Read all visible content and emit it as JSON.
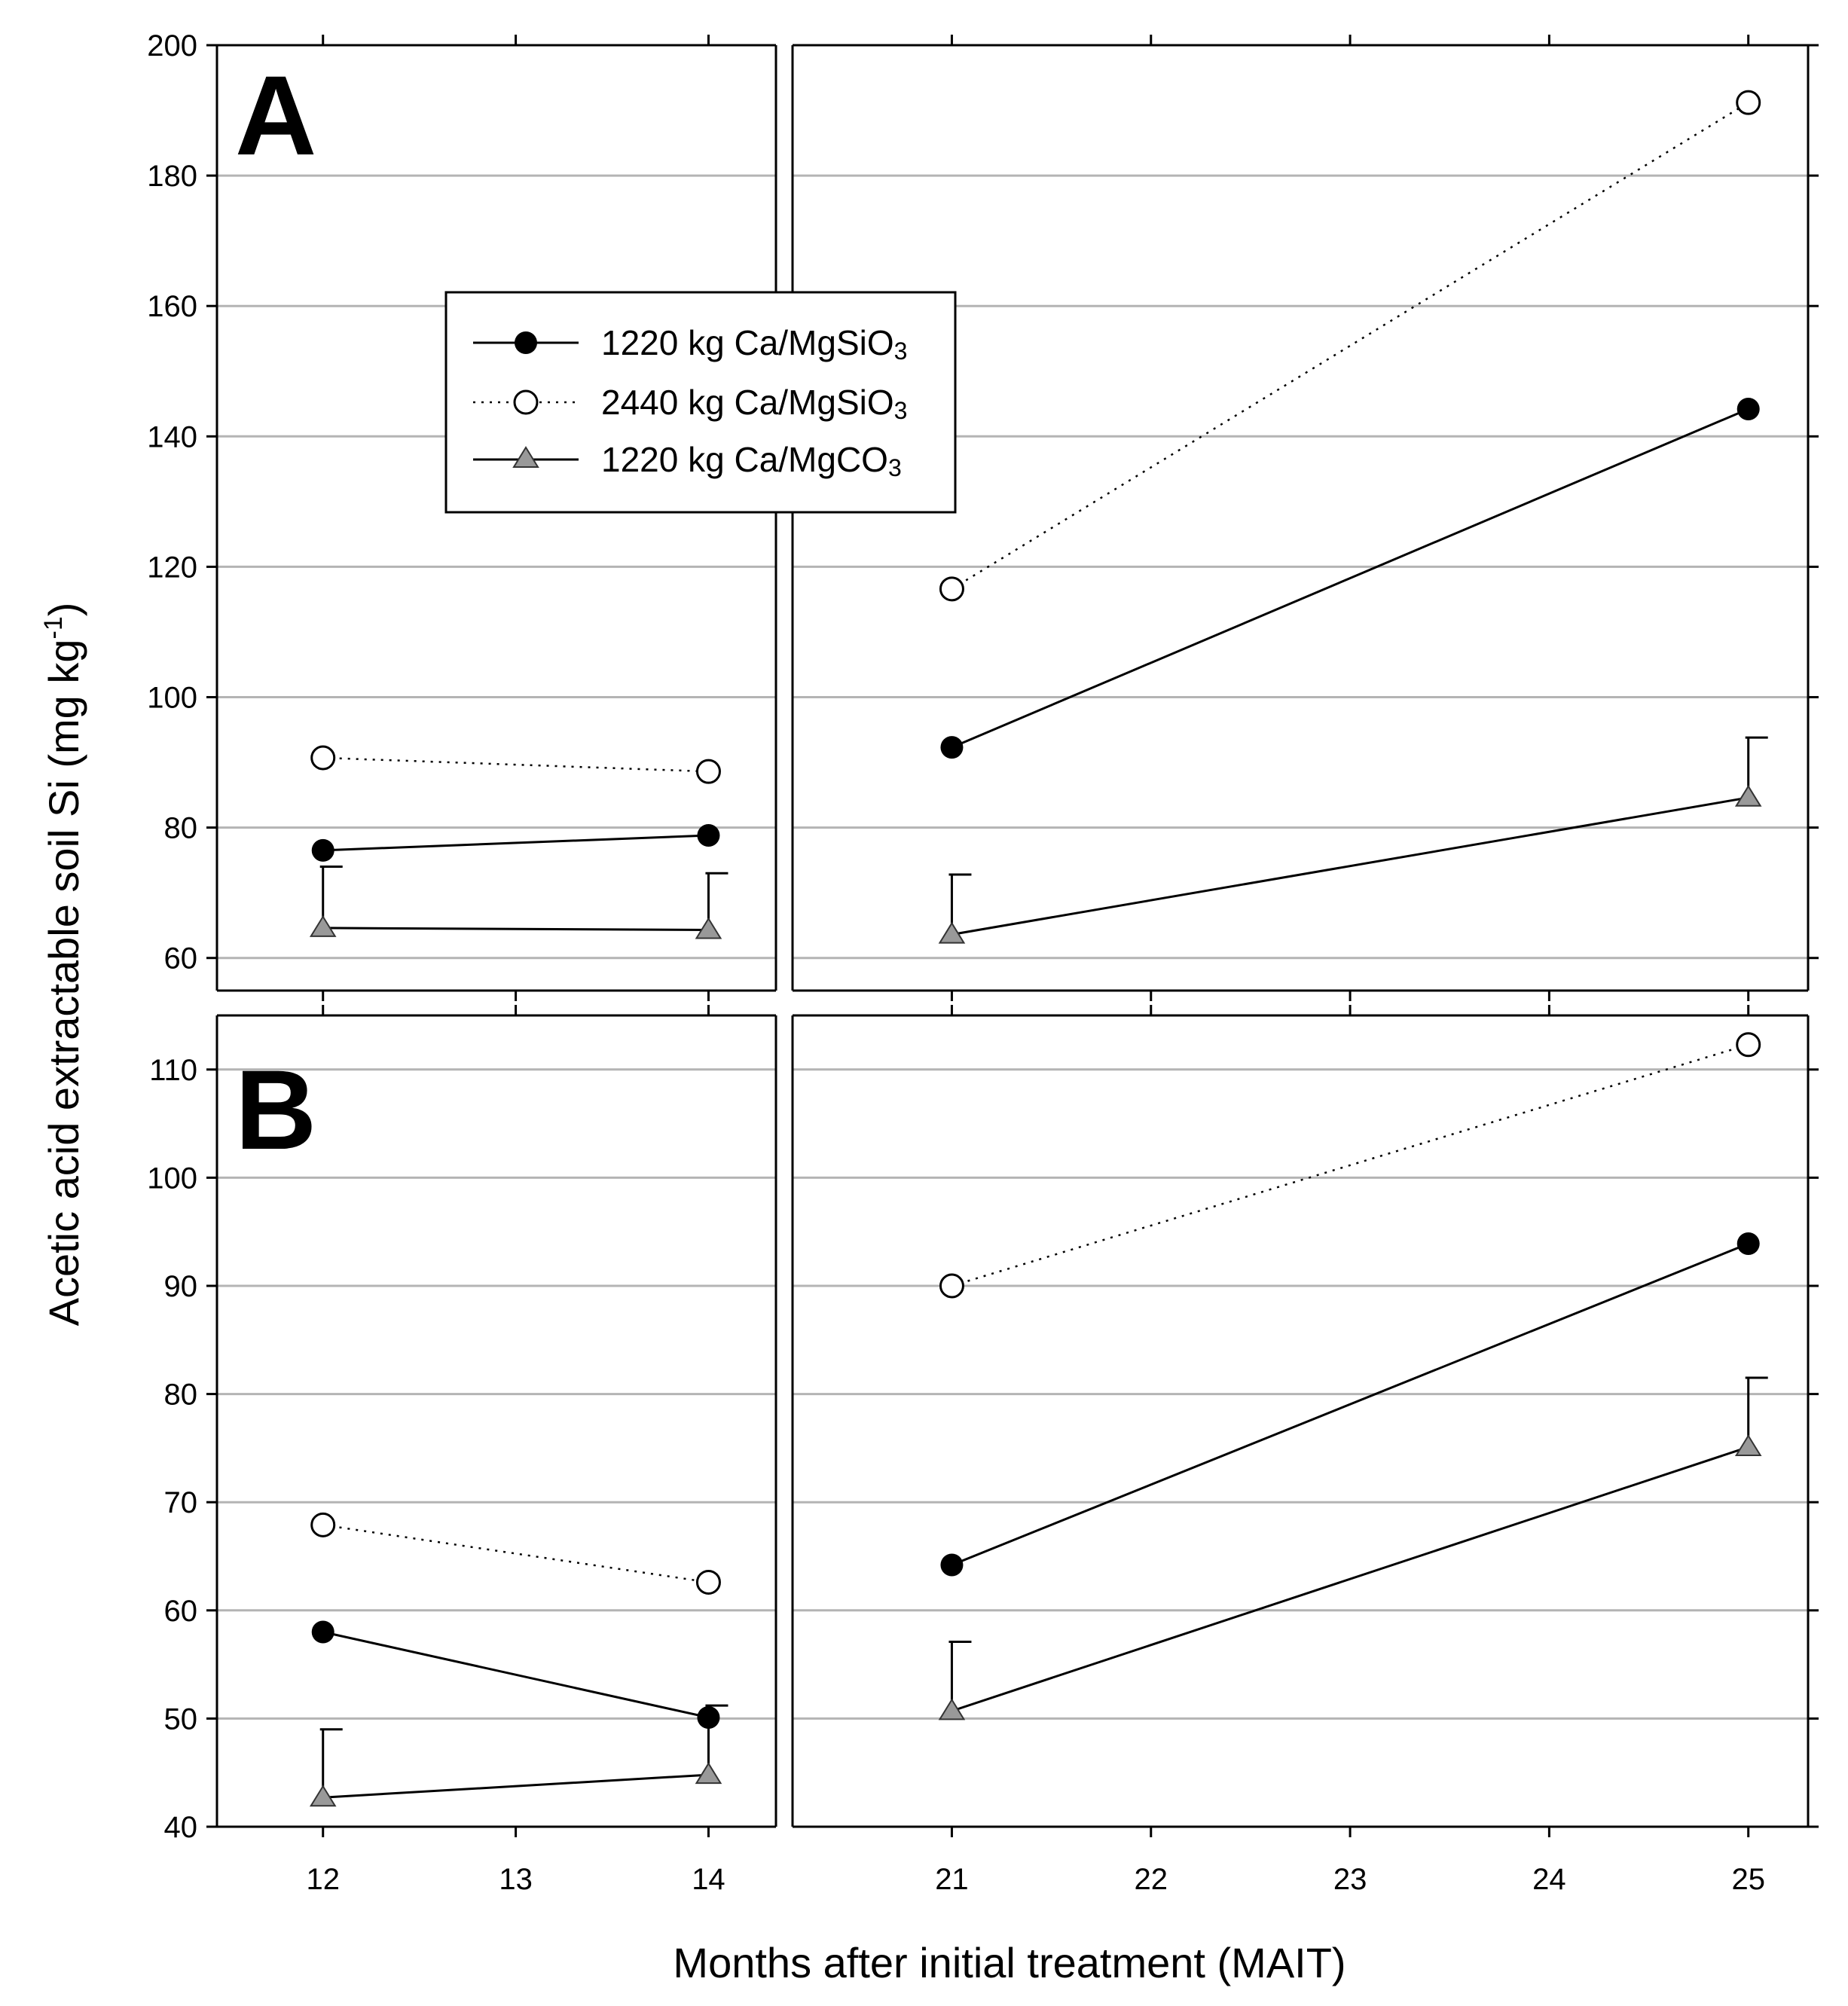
{
  "chart_data": {
    "type": "line",
    "ylabel": "Acetic acid extractable soil Si (mg kg",
    "ylabel_sup": "-1",
    "ylabel_close": ")",
    "xlabel": "Months after initial treatment (MAIT)",
    "x_ticks": [
      12,
      13,
      14,
      21,
      22,
      23,
      24,
      25
    ],
    "x_segments": [
      [
        11.45,
        14.35
      ],
      [
        20.2,
        25.3
      ]
    ],
    "legend": [
      {
        "series": "s1220sio3",
        "label": "1220 kg Ca/MgSiO",
        "sub": "3"
      },
      {
        "series": "s2440sio3",
        "label": "2440 kg Ca/MgSiO",
        "sub": "3"
      },
      {
        "series": "s1220co3",
        "label": "1220 kg Ca/MgCO",
        "sub": "3"
      }
    ],
    "panels": [
      {
        "id": "A",
        "label": "A",
        "ylim": [
          55,
          200
        ],
        "y_ticks": [
          60,
          80,
          100,
          120,
          140,
          160,
          180,
          200
        ],
        "series": [
          {
            "name": "s1220sio3",
            "points": [
              {
                "x": 12,
                "y": 76.5
              },
              {
                "x": 14,
                "y": 78.8
              },
              {
                "x": 21,
                "y": 92.3
              },
              {
                "x": 25,
                "y": 144.2
              }
            ]
          },
          {
            "name": "s2440sio3",
            "points": [
              {
                "x": 12,
                "y": 90.7
              },
              {
                "x": 14,
                "y": 88.6
              },
              {
                "x": 21,
                "y": 116.6
              },
              {
                "x": 25,
                "y": 191.2
              }
            ]
          },
          {
            "name": "s1220co3",
            "points": [
              {
                "x": 12,
                "y": 64.6,
                "err": 74.0
              },
              {
                "x": 14,
                "y": 64.3,
                "err": 73.0
              },
              {
                "x": 21,
                "y": 63.6,
                "err": 72.8
              },
              {
                "x": 25,
                "y": 84.6,
                "err": 93.8
              }
            ]
          }
        ]
      },
      {
        "id": "B",
        "label": "B",
        "ylim": [
          40,
          115
        ],
        "y_ticks": [
          40,
          50,
          60,
          70,
          80,
          90,
          100,
          110
        ],
        "series": [
          {
            "name": "s1220sio3",
            "points": [
              {
                "x": 12,
                "y": 58.0
              },
              {
                "x": 14,
                "y": 50.1
              },
              {
                "x": 21,
                "y": 64.2
              },
              {
                "x": 25,
                "y": 93.9
              }
            ]
          },
          {
            "name": "s2440sio3",
            "points": [
              {
                "x": 12,
                "y": 67.9
              },
              {
                "x": 14,
                "y": 62.6
              },
              {
                "x": 21,
                "y": 90.0
              },
              {
                "x": 25,
                "y": 112.3
              }
            ]
          },
          {
            "name": "s1220co3",
            "points": [
              {
                "x": 12,
                "y": 42.7,
                "err": 49.0
              },
              {
                "x": 14,
                "y": 44.8,
                "err": 51.2
              },
              {
                "x": 21,
                "y": 50.7,
                "err": 57.1
              },
              {
                "x": 25,
                "y": 75.1,
                "err": 81.5
              }
            ]
          }
        ]
      }
    ]
  }
}
